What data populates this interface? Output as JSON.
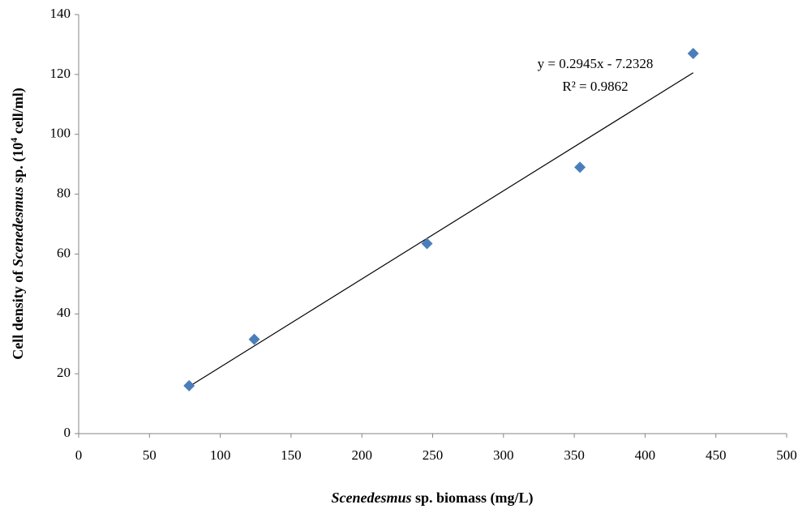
{
  "chart_data": {
    "type": "scatter",
    "x_label_parts": [
      "Scenedesmus",
      " sp. biomass (mg/L)"
    ],
    "y_label_parts": [
      "Cell density of ",
      "Scenedesmus",
      " sp. (10",
      "4",
      " cell/ml)"
    ],
    "x": [
      78,
      124,
      246,
      354,
      434
    ],
    "series": [
      {
        "name": "Cell density",
        "color": "#4a7ebb",
        "values": [
          16,
          31.5,
          63.5,
          89,
          127
        ]
      }
    ],
    "trendline": {
      "equation": "y = 0.2945x - 7.2328",
      "r2": "R² = 0.9862",
      "slope": 0.2945,
      "intercept": -7.2328,
      "color": "#000000"
    },
    "xlim": [
      0,
      500
    ],
    "xticks": [
      0,
      50,
      100,
      150,
      200,
      250,
      300,
      350,
      400,
      450,
      500
    ],
    "ylim": [
      0,
      140
    ],
    "yticks": [
      0,
      20,
      40,
      60,
      80,
      100,
      120,
      140
    ],
    "grid": false
  }
}
